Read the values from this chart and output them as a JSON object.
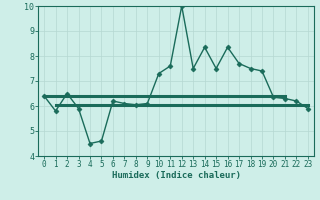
{
  "x": [
    0,
    1,
    2,
    3,
    4,
    5,
    6,
    7,
    8,
    9,
    10,
    11,
    12,
    13,
    14,
    15,
    16,
    17,
    18,
    19,
    20,
    21,
    22,
    23
  ],
  "y_main": [
    6.4,
    5.8,
    6.5,
    5.9,
    4.5,
    4.6,
    6.2,
    6.1,
    6.05,
    6.1,
    7.3,
    7.6,
    10.0,
    7.5,
    8.35,
    7.5,
    8.35,
    7.7,
    7.5,
    7.4,
    6.35,
    6.3,
    6.2,
    5.9
  ],
  "y_flat1": 6.4,
  "y_flat2": 6.05,
  "flat1_x_start": 0,
  "flat1_x_end": 21,
  "flat2_x_start": 1,
  "flat2_x_end": 23,
  "line_color": "#1a6b5a",
  "bg_color": "#ceeee8",
  "grid_color": "#b5d8d2",
  "xlabel": "Humidex (Indice chaleur)",
  "ylim": [
    4,
    10
  ],
  "xlim_min": -0.5,
  "xlim_max": 23.5,
  "yticks": [
    4,
    5,
    6,
    7,
    8,
    9,
    10
  ],
  "xticks": [
    0,
    1,
    2,
    3,
    4,
    5,
    6,
    7,
    8,
    9,
    10,
    11,
    12,
    13,
    14,
    15,
    16,
    17,
    18,
    19,
    20,
    21,
    22,
    23
  ],
  "markersize": 2.5,
  "linewidth": 1.0,
  "flat_linewidth": 2.2,
  "tick_fontsize": 5.5,
  "xlabel_fontsize": 6.5
}
